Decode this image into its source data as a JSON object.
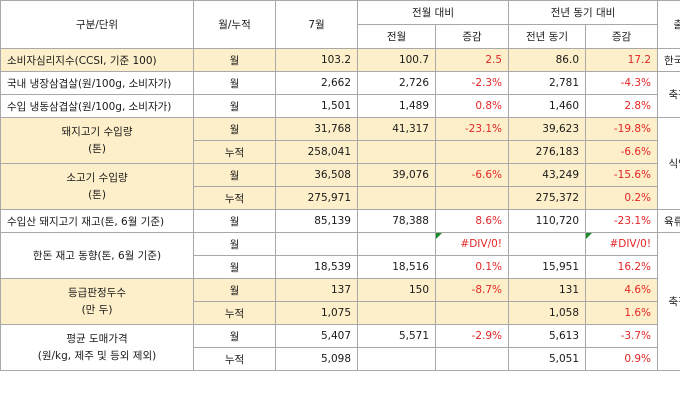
{
  "header": {
    "item": "구분/단위",
    "period": "월/누적",
    "month": "7월",
    "mom": "전월 대비",
    "mom_prev": "전월",
    "mom_chg": "증감",
    "yoy": "전년 동기 대비",
    "yoy_prev": "전년 동기",
    "yoy_chg": "증감",
    "source": "출처"
  },
  "rows": {
    "r1": {
      "label": "소비자심리지수(CCSI, 기준 100)",
      "period": "월",
      "july": "103.2",
      "prev_month": "100.7",
      "mom": "2.5",
      "prev_year": "86.0",
      "yoy": "17.2",
      "source": "한국은행"
    },
    "r2": {
      "label": "국내 냉장삼겹살(원/100g, 소비자가)",
      "period": "월",
      "july": "2,662",
      "prev_month": "2,726",
      "mom": "-2.3%",
      "prev_year": "2,781",
      "yoy": "-4.3%"
    },
    "r3": {
      "label": "수입 냉동삼겹살(원/100g, 소비자가)",
      "period": "월",
      "july": "1,501",
      "prev_month": "1,489",
      "mom": "0.8%",
      "prev_year": "1,460",
      "yoy": "2.8%"
    },
    "r4": {
      "label1": "돼지고기 수입량",
      "label2": "(톤)",
      "period": "월",
      "july": "31,768",
      "prev_month": "41,317",
      "mom": "-23.1%",
      "prev_year": "39,623",
      "yoy": "-19.8%"
    },
    "r5": {
      "period": "누적",
      "july": "258,041",
      "prev_year": "276,183",
      "yoy": "-6.6%"
    },
    "r6": {
      "label1": "소고기 수입량",
      "label2": "(톤)",
      "period": "월",
      "july": "36,508",
      "prev_month": "39,076",
      "mom": "-6.6%",
      "prev_year": "43,249",
      "yoy": "-15.6%"
    },
    "r7": {
      "period": "누적",
      "july": "275,971",
      "prev_year": "275,372",
      "yoy": "0.2%"
    },
    "r8": {
      "label": "수입산 돼지고기 재고(톤, 6월 기준)",
      "period": "월",
      "july": "85,139",
      "prev_month": "78,388",
      "mom": "8.6%",
      "prev_year": "110,720",
      "yoy": "-23.1%",
      "source": "육류협회"
    },
    "r9": {
      "label": "한돈 재고 동향(톤, 6월 기준)",
      "period": "월",
      "mom": "#DIV/0!",
      "yoy": "#DIV/0!"
    },
    "r10": {
      "period": "월",
      "july": "18,539",
      "prev_month": "18,516",
      "mom": "0.1%",
      "prev_year": "15,951",
      "yoy": "16.2%"
    },
    "r11": {
      "label1": "등급판정두수",
      "label2": "(만 두)",
      "period": "월",
      "july": "137",
      "prev_month": "150",
      "mom": "-8.7%",
      "prev_year": "131",
      "yoy": "4.6%"
    },
    "r12": {
      "period": "누적",
      "july": "1,075",
      "prev_year": "1,058",
      "yoy": "1.6%"
    },
    "r13": {
      "label1": "평균 도매가격",
      "label2": "(원/kg, 제주 및 등외 제외)",
      "period": "월",
      "july": "5,407",
      "prev_month": "5,571",
      "mom": "-2.9%",
      "prev_year": "5,613",
      "yoy": "-3.7%"
    },
    "r14": {
      "period": "누적",
      "july": "5,098",
      "prev_year": "5,051",
      "yoy": "0.9%"
    }
  },
  "sources": {
    "kapex": "축평원",
    "mfds": "식약처",
    "kapex2": "축평원"
  },
  "colors": {
    "highlight": "#fdefc9",
    "negative_text": "#e32626",
    "grid_line": "#a8a8a8",
    "error_marker": "#1b8a2e"
  }
}
